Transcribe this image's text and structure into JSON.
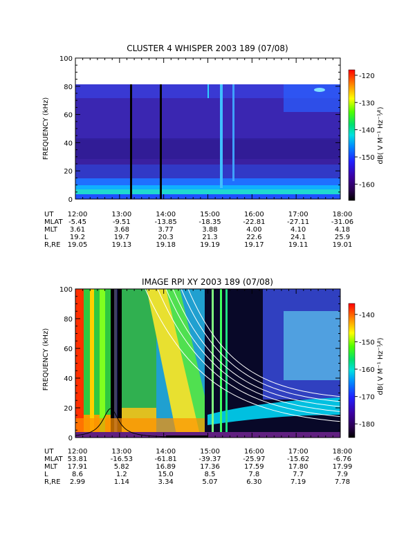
{
  "chart_data": [
    {
      "type": "heatmap",
      "title": "CLUSTER 4 WHISPER 2003 189 (07/08)",
      "ylabel": "FREQUENCY (kHz)",
      "xlim": [
        "12:00",
        "18:00"
      ],
      "ylim": [
        0,
        100
      ],
      "data_max_frequency": 80,
      "x_ticks": [
        "12:00",
        "13:00",
        "14:00",
        "15:00",
        "16:00",
        "17:00",
        "18:00"
      ],
      "y_ticks": [
        0,
        20,
        40,
        60,
        80,
        100
      ],
      "colorbar": {
        "label": "dB( V M⁻¹ Hz⁻¹⁄²)",
        "ticks": [
          -120,
          -130,
          -140,
          -150,
          -160
        ],
        "range": [
          -166,
          -118
        ]
      },
      "ephemeris": [
        {
          "label": "UT",
          "values": [
            "12:00",
            "13:00",
            "14:00",
            "15:00",
            "16:00",
            "17:00",
            "18:00"
          ]
        },
        {
          "label": "MLAT",
          "values": [
            "-5.45",
            "-9.51",
            "-13.85",
            "-18.35",
            "-22.81",
            "-27.11",
            "-31.06"
          ]
        },
        {
          "label": "MLT",
          "values": [
            "3.61",
            "3.68",
            "3.77",
            "3.88",
            "4.00",
            "4.10",
            "4.18"
          ]
        },
        {
          "label": "L",
          "values": [
            "19.2",
            "19.7",
            "20.3",
            "21.3",
            "22.6",
            "24.1",
            "25.9"
          ]
        },
        {
          "label": "R,RE",
          "values": [
            "19.05",
            "19.13",
            "19.18",
            "19.19",
            "19.17",
            "19.11",
            "19.01"
          ]
        }
      ]
    },
    {
      "type": "heatmap",
      "title": "IMAGE RPI XY 2003 189 (07/08)",
      "ylabel": "FREQUENCY (kHz)",
      "xlim": [
        "12:00",
        "18:00"
      ],
      "ylim": [
        0,
        100
      ],
      "x_ticks": [
        "12:00",
        "13:00",
        "14:00",
        "15:00",
        "16:00",
        "17:00",
        "18:00"
      ],
      "y_ticks": [
        0,
        20,
        40,
        60,
        80,
        100
      ],
      "colorbar": {
        "label": "dB( V M⁻¹ Hz⁻¹⁄²)",
        "ticks": [
          -140,
          -150,
          -160,
          -170,
          -180
        ],
        "range": [
          -185,
          -136
        ]
      },
      "ephemeris": [
        {
          "label": "UT",
          "values": [
            "12:00",
            "13:00",
            "14:00",
            "15:00",
            "16:00",
            "17:00",
            "18:00"
          ]
        },
        {
          "label": "MLAT",
          "values": [
            "53.81",
            "-16.53",
            "-61.81",
            "-39.37",
            "-25.97",
            "-15.62",
            "-6.76"
          ]
        },
        {
          "label": "MLT",
          "values": [
            "17.91",
            "5.82",
            "16.89",
            "17.36",
            "17.59",
            "17.80",
            "17.99"
          ]
        },
        {
          "label": "L",
          "values": [
            "8.6",
            "1.2",
            "15.0",
            "8.5",
            "7.8",
            "7.7",
            "7.9"
          ]
        },
        {
          "label": "R,RE",
          "values": [
            "2.99",
            "1.14",
            "3.34",
            "5.07",
            "6.30",
            "7.19",
            "7.78"
          ]
        }
      ]
    }
  ]
}
